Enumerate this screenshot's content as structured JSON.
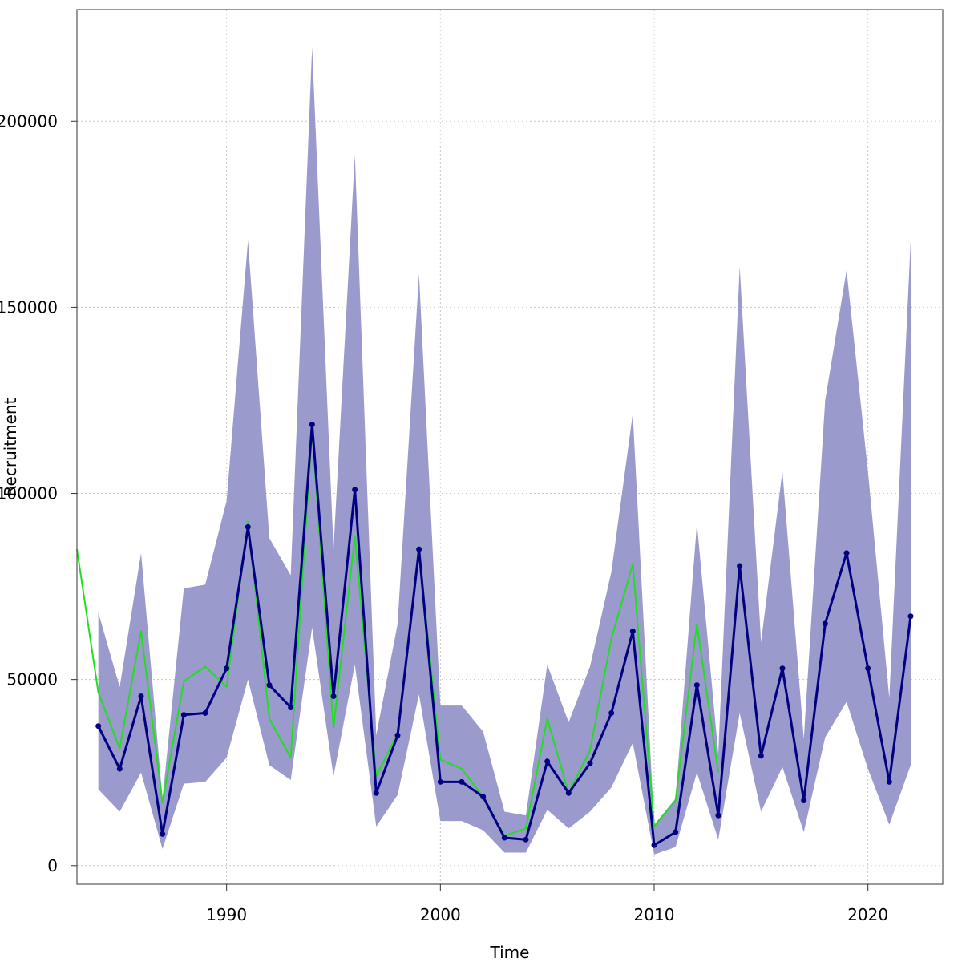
{
  "chart_data": {
    "type": "line",
    "title": "",
    "xlabel": "Time",
    "ylabel": "Recruitment",
    "xlim": [
      1983,
      2023.5
    ],
    "ylim": [
      -5000,
      230000
    ],
    "grid": true,
    "x_ticks": [
      1990,
      2000,
      2010,
      2020
    ],
    "y_ticks": [
      0,
      50000,
      100000,
      150000,
      200000
    ],
    "colors": {
      "band": "#9a9acc",
      "estimate": "#000080",
      "observed": "#22dd22"
    },
    "series": [
      {
        "role": "confidence-band",
        "x": [
          1984,
          1985,
          1986,
          1987,
          1988,
          1989,
          1990,
          1991,
          1992,
          1993,
          1994,
          1995,
          1996,
          1997,
          1998,
          1999,
          2000,
          2001,
          2002,
          2003,
          2004,
          2005,
          2006,
          2007,
          2008,
          2009,
          2010,
          2011,
          2012,
          2013,
          2014,
          2015,
          2016,
          2017,
          2018,
          2019,
          2020,
          2021,
          2022
        ],
        "lower": [
          20500,
          14500,
          25000,
          4500,
          22000,
          22500,
          29000,
          50000,
          27000,
          23000,
          64000,
          24000,
          54000,
          10500,
          19000,
          46000,
          12000,
          12000,
          9500,
          3500,
          3500,
          15000,
          10000,
          14500,
          21000,
          33000,
          3000,
          5000,
          25000,
          7000,
          41000,
          14500,
          26500,
          9000,
          34500,
          44000,
          26000,
          11000,
          27000
        ],
        "upper": [
          68000,
          48000,
          84000,
          18000,
          74500,
          75500,
          98000,
          168000,
          88000,
          78000,
          220000,
          85000,
          191000,
          35000,
          65000,
          159000,
          43000,
          43000,
          36000,
          14500,
          13500,
          54000,
          38500,
          53500,
          79000,
          121500,
          11000,
          18000,
          92000,
          30000,
          161000,
          60000,
          106000,
          34000,
          125000,
          160000,
          106000,
          45000,
          168000
        ]
      },
      {
        "role": "estimate",
        "x": [
          1984,
          1985,
          1986,
          1987,
          1988,
          1989,
          1990,
          1991,
          1992,
          1993,
          1994,
          1995,
          1996,
          1997,
          1998,
          1999,
          2000,
          2001,
          2002,
          2003,
          2004,
          2005,
          2006,
          2007,
          2008,
          2009,
          2010,
          2011,
          2012,
          2013,
          2014,
          2015,
          2016,
          2017,
          2018,
          2019,
          2020,
          2021,
          2022
        ],
        "values": [
          37500,
          26000,
          45500,
          8500,
          40500,
          41000,
          53000,
          91000,
          48500,
          42500,
          118500,
          45500,
          101000,
          19500,
          35000,
          85000,
          22500,
          22500,
          18500,
          7500,
          7000,
          28000,
          19500,
          27500,
          41000,
          63000,
          5500,
          9000,
          48500,
          13500,
          80500,
          29500,
          53000,
          17500,
          65000,
          84000,
          53000,
          22500,
          67000
        ]
      },
      {
        "role": "observed",
        "x": [
          1983,
          1984,
          1985,
          1986,
          1987,
          1988,
          1989,
          1990,
          1991,
          1992,
          1993,
          1994,
          1995,
          1996,
          1997,
          1998,
          1999,
          2000,
          2001,
          2002,
          2003,
          2004,
          2005,
          2006,
          2007,
          2008,
          2009,
          2010,
          2011,
          2012,
          2013
        ],
        "values": [
          85000,
          46500,
          31500,
          63000,
          17000,
          49500,
          53500,
          48000,
          92500,
          39500,
          29000,
          117000,
          37000,
          88500,
          24000,
          35500,
          84500,
          28500,
          26000,
          18500,
          8000,
          10000,
          39500,
          19500,
          31000,
          61000,
          81000,
          10500,
          17500,
          65000,
          25000
        ]
      }
    ]
  }
}
